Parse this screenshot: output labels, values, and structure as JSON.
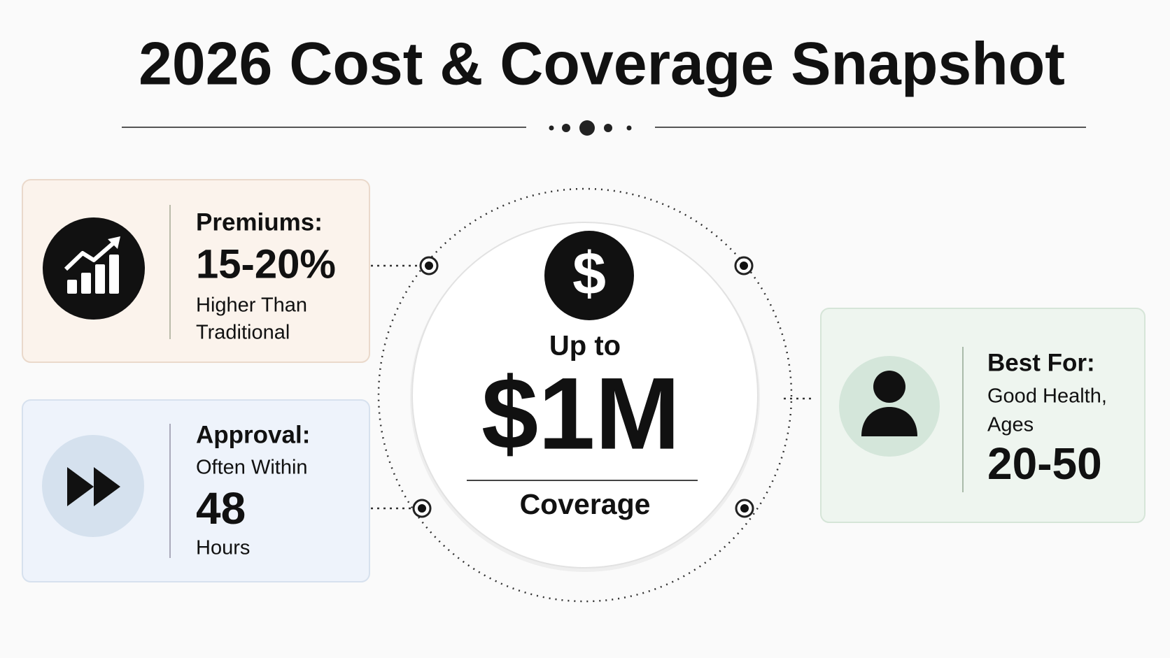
{
  "header": {
    "title": "2026 Cost & Coverage Snapshot"
  },
  "premiums": {
    "label": "Premiums:",
    "value": "15-20%",
    "note": [
      "Higher Than",
      "Traditional"
    ]
  },
  "approval": {
    "label": "Approval:",
    "lead": "Often Within",
    "value": "48",
    "unit": "Hours"
  },
  "center": {
    "icon": "$",
    "lead": "Up to",
    "value": "$1M",
    "unit": "Coverage"
  },
  "best_for": {
    "label": "Best For:",
    "lead": [
      "Good Health,",
      "Ages"
    ],
    "value": "20-50"
  }
}
